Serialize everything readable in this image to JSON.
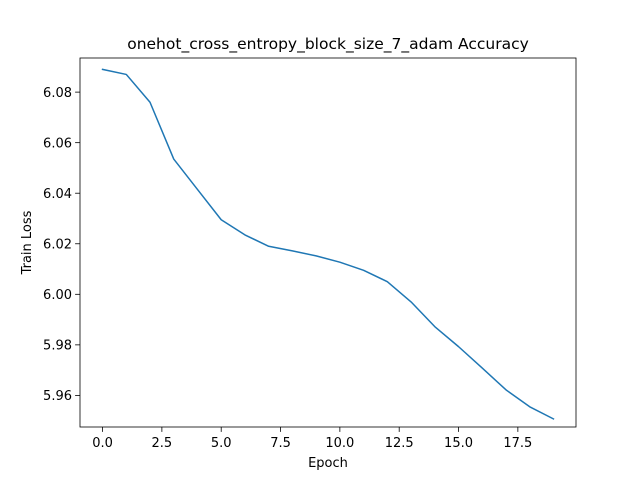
{
  "chart_data": {
    "type": "line",
    "title": "onehot_cross_entropy_block_size_7_adam Accuracy",
    "xlabel": "Epoch",
    "ylabel": "Train Loss",
    "xlim": [
      -0.95,
      19.95
    ],
    "ylim": [
      5.9475,
      6.0935
    ],
    "xticks": [
      0,
      2.5,
      5,
      7.5,
      10,
      12.5,
      15,
      17.5
    ],
    "xtick_labels": [
      "0.0",
      "2.5",
      "5.0",
      "7.5",
      "10.0",
      "12.5",
      "15.0",
      "17.5"
    ],
    "yticks": [
      5.96,
      5.98,
      6.0,
      6.02,
      6.04,
      6.06,
      6.08
    ],
    "ytick_labels": [
      "5.96",
      "5.98",
      "6.00",
      "6.02",
      "6.04",
      "6.06",
      "6.08"
    ],
    "grid": false,
    "line_color": "#1f77b4",
    "series": [
      {
        "x": [
          0,
          1,
          2,
          3,
          4,
          5,
          6,
          7,
          8,
          9,
          10,
          11,
          12,
          13,
          14,
          15,
          16,
          17,
          18,
          19
        ],
        "values": [
          6.089,
          6.087,
          6.076,
          6.0535,
          6.0415,
          6.0295,
          6.0235,
          6.019,
          6.0172,
          6.0152,
          6.0127,
          6.0095,
          6.005,
          5.997,
          5.9872,
          5.9793,
          5.9708,
          5.9622,
          5.9555,
          5.9507
        ]
      }
    ]
  }
}
